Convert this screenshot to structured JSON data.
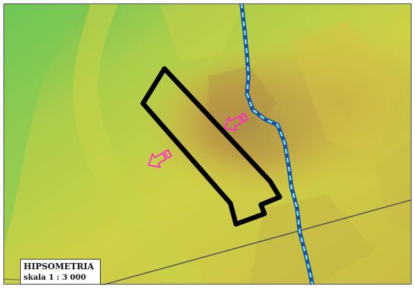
{
  "legend": {
    "title": "HIPSOMETRIA",
    "scale": "skala 1 : 3 000"
  },
  "colors": {
    "terrain_low": "#62c45c",
    "terrain_mid": "#c8d044",
    "terrain_high": "#a48846",
    "parcel_outline": "#000000",
    "arrow": "#ff2fbf",
    "stream_outer": "#1a4f9b",
    "stream_inner": "#7ff0f0",
    "road_line": "#555555",
    "frame": "#444444"
  },
  "features": {
    "parcel": "parcel-outline",
    "arrows": [
      "flow-arrow",
      "flow-arrow"
    ],
    "stream": "stream-line",
    "roads": [
      "road-line",
      "road-line"
    ]
  }
}
